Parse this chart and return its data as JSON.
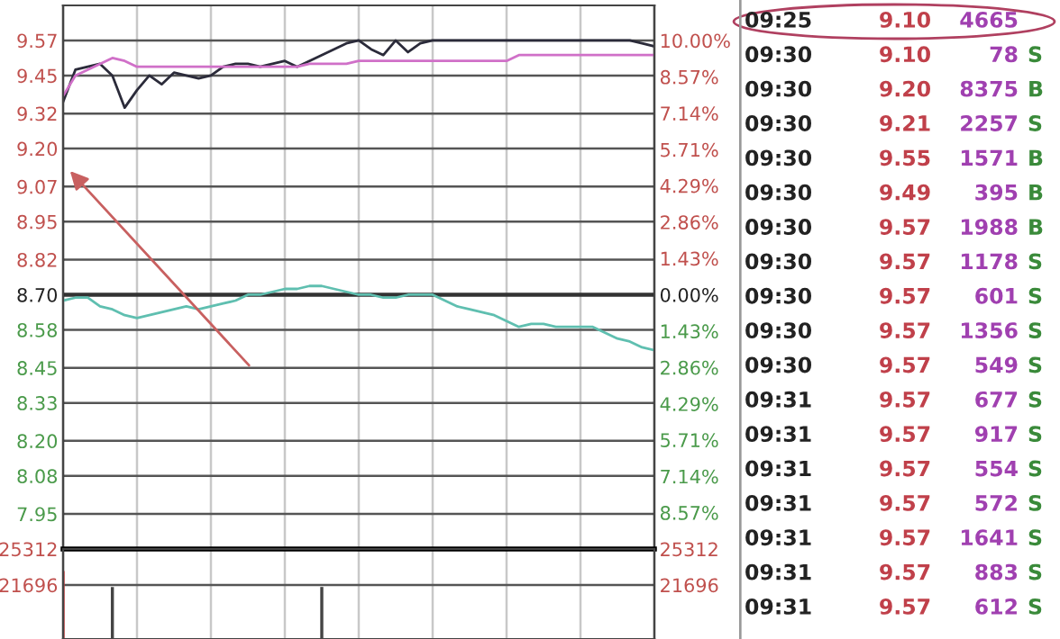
{
  "chart_data": [
    {
      "type": "line",
      "categories": [
        null,
        null,
        null,
        null,
        null,
        null,
        null,
        null,
        null,
        null,
        null,
        null,
        null,
        null,
        null,
        null,
        null,
        null,
        null,
        null,
        null,
        null,
        null,
        null,
        null,
        null,
        null,
        null,
        null,
        null,
        null,
        null,
        null,
        null,
        null,
        null,
        null,
        null,
        null,
        null,
        null,
        null,
        null,
        null,
        null,
        null,
        null,
        null,
        null
      ],
      "ylim": [
        7.83,
        9.69
      ],
      "yticks": [
        9.57,
        9.45,
        9.32,
        {
          "value": 9.2,
          "label": "9.20"
        },
        9.07,
        8.95,
        8.82,
        {
          "value": 8.7,
          "label": "8.70"
        },
        8.58,
        8.45,
        8.33,
        {
          "value": 8.2,
          "label": "8.20"
        },
        8.08,
        7.95
      ],
      "y2lim": [
        -10.0,
        11.38
      ],
      "y2ticks": [
        {
          "value": 10.0,
          "label": "10.00%"
        },
        {
          "value": 8.57,
          "label": "8.57%"
        },
        {
          "value": 7.14,
          "label": "7.14%"
        },
        {
          "value": 5.71,
          "label": "5.71%"
        },
        {
          "value": 4.29,
          "label": "4.29%"
        },
        {
          "value": 2.86,
          "label": "2.86%"
        },
        {
          "value": 1.43,
          "label": "1.43%"
        },
        {
          "value": 0,
          "label": "0.00%"
        },
        {
          "value": -1.43,
          "label": "1.43%"
        },
        {
          "value": -2.86,
          "label": "2.86%"
        },
        {
          "value": -4.29,
          "label": "4.29%"
        },
        {
          "value": -5.71,
          "label": "5.71%"
        },
        {
          "value": -7.14,
          "label": "7.14%"
        },
        {
          "value": -8.57,
          "label": "8.57%"
        }
      ],
      "tick_labels": "y",
      "grid": true,
      "ref_lines": [
        {
          "axis": "y",
          "value": 8.7,
          "color": "#333333"
        }
      ],
      "series": [
        {
          "color": "#2b2b3a",
          "values": [
            9.36,
            9.47,
            9.48,
            9.49,
            9.45,
            9.34,
            9.4,
            9.45,
            9.42,
            9.46,
            9.45,
            9.44,
            9.45,
            9.48,
            9.49,
            9.49,
            9.48,
            9.49,
            9.5,
            9.48,
            9.5,
            9.52,
            9.54,
            9.56,
            9.57,
            9.54,
            9.52,
            9.57,
            9.53,
            9.56,
            9.57,
            9.57,
            9.57,
            9.57,
            9.57,
            9.57,
            9.57,
            9.57,
            9.57,
            9.57,
            9.57,
            9.57,
            9.57,
            9.57,
            9.57,
            9.57,
            9.57,
            9.56,
            9.55
          ]
        },
        {
          "color": "#d070c8",
          "values": [
            9.38,
            9.45,
            9.47,
            9.49,
            9.51,
            9.5,
            9.48,
            9.48,
            9.48,
            9.48,
            9.48,
            9.48,
            9.48,
            9.48,
            9.48,
            9.48,
            9.48,
            9.48,
            9.48,
            9.48,
            9.49,
            9.49,
            9.49,
            9.49,
            9.5,
            9.5,
            9.5,
            9.5,
            9.5,
            9.5,
            9.5,
            9.5,
            9.5,
            9.5,
            9.5,
            9.5,
            9.5,
            9.52,
            9.52,
            9.52,
            9.52,
            9.52,
            9.52,
            9.52,
            9.52,
            9.52,
            9.52,
            9.52,
            9.52
          ]
        },
        {
          "color": "#5fbfb0",
          "values": [
            8.68,
            8.69,
            8.69,
            8.66,
            8.65,
            8.63,
            8.62,
            8.63,
            8.64,
            8.65,
            8.66,
            8.65,
            8.66,
            8.67,
            8.68,
            8.7,
            8.7,
            8.71,
            8.72,
            8.72,
            8.73,
            8.73,
            8.72,
            8.71,
            8.7,
            8.7,
            8.69,
            8.69,
            8.7,
            8.7,
            8.7,
            8.68,
            8.66,
            8.65,
            8.64,
            8.63,
            8.61,
            8.59,
            8.6,
            8.6,
            8.59,
            8.59,
            8.59,
            8.59,
            8.57,
            8.55,
            8.54,
            8.52,
            8.51
          ]
        }
      ]
    },
    {
      "type": "bar",
      "categories": [
        null,
        null,
        null,
        null,
        null,
        null,
        null,
        null,
        null,
        null,
        null,
        null,
        null,
        null,
        null,
        null,
        null,
        null,
        null,
        null,
        null,
        null,
        null,
        null,
        null,
        null,
        null,
        null,
        null,
        null,
        null,
        null,
        null,
        null,
        null,
        null,
        null,
        null,
        null,
        null,
        null,
        null,
        null,
        null,
        null,
        null,
        null,
        null,
        null
      ],
      "ylim": [
        16272,
        25312
      ],
      "yticks": [
        25312,
        21696
      ],
      "y2lim": [
        16272,
        25312
      ],
      "y2ticks": [
        25312,
        21696
      ],
      "tick_labels": "y",
      "grid": "x",
      "ref_lines": [
        {
          "axis": "y",
          "value": 21696,
          "color": "#555555"
        }
      ],
      "values": [
        23100,
        null,
        null,
        null,
        21500,
        null,
        null,
        null,
        null,
        null,
        null,
        null,
        null,
        null,
        null,
        null,
        null,
        null,
        null,
        null,
        null,
        21500,
        null,
        null,
        null,
        null,
        null,
        null,
        null,
        null,
        null,
        null,
        null,
        null,
        null,
        null,
        null,
        null,
        null,
        null,
        null,
        null,
        null,
        null,
        null,
        null,
        null,
        null,
        null
      ],
      "colors": [
        "#d04040",
        null,
        null,
        null,
        "#444444",
        null,
        null,
        null,
        null,
        null,
        null,
        null,
        null,
        null,
        null,
        null,
        null,
        null,
        null,
        null,
        null,
        "#444444",
        null,
        null,
        null,
        null,
        null,
        null,
        null,
        null,
        null,
        null,
        null,
        null,
        null,
        null,
        null,
        null,
        null,
        null,
        null,
        null,
        null,
        null,
        null,
        null,
        null,
        null,
        null
      ]
    },
    {
      "type": "other",
      "colors": [
        "#222222",
        "#c0404a",
        "#a040b0",
        "#3a8a3a"
      ],
      "annotations": [
        "09:25 9.10 4665",
        "09:30 9.10 78 S",
        "09:30 9.20 8375 B",
        "09:30 9.21 2257 S",
        "09:30 9.55 1571 B",
        "09:30 9.49 395 B",
        "09:30 9.57 1988 B",
        "09:30 9.57 1178 S",
        "09:30 9.57 601 S",
        "09:30 9.57 1356 S",
        "09:30 9.57 549 S",
        "09:31 9.57 677 S",
        "09:31 9.57 917 S",
        "09:31 9.57 554 S",
        "09:31 9.57 572 S",
        "09:31 9.57 1641 S",
        "09:31 9.57 883 S",
        "09:31 9.57 612 S"
      ]
    }
  ]
}
